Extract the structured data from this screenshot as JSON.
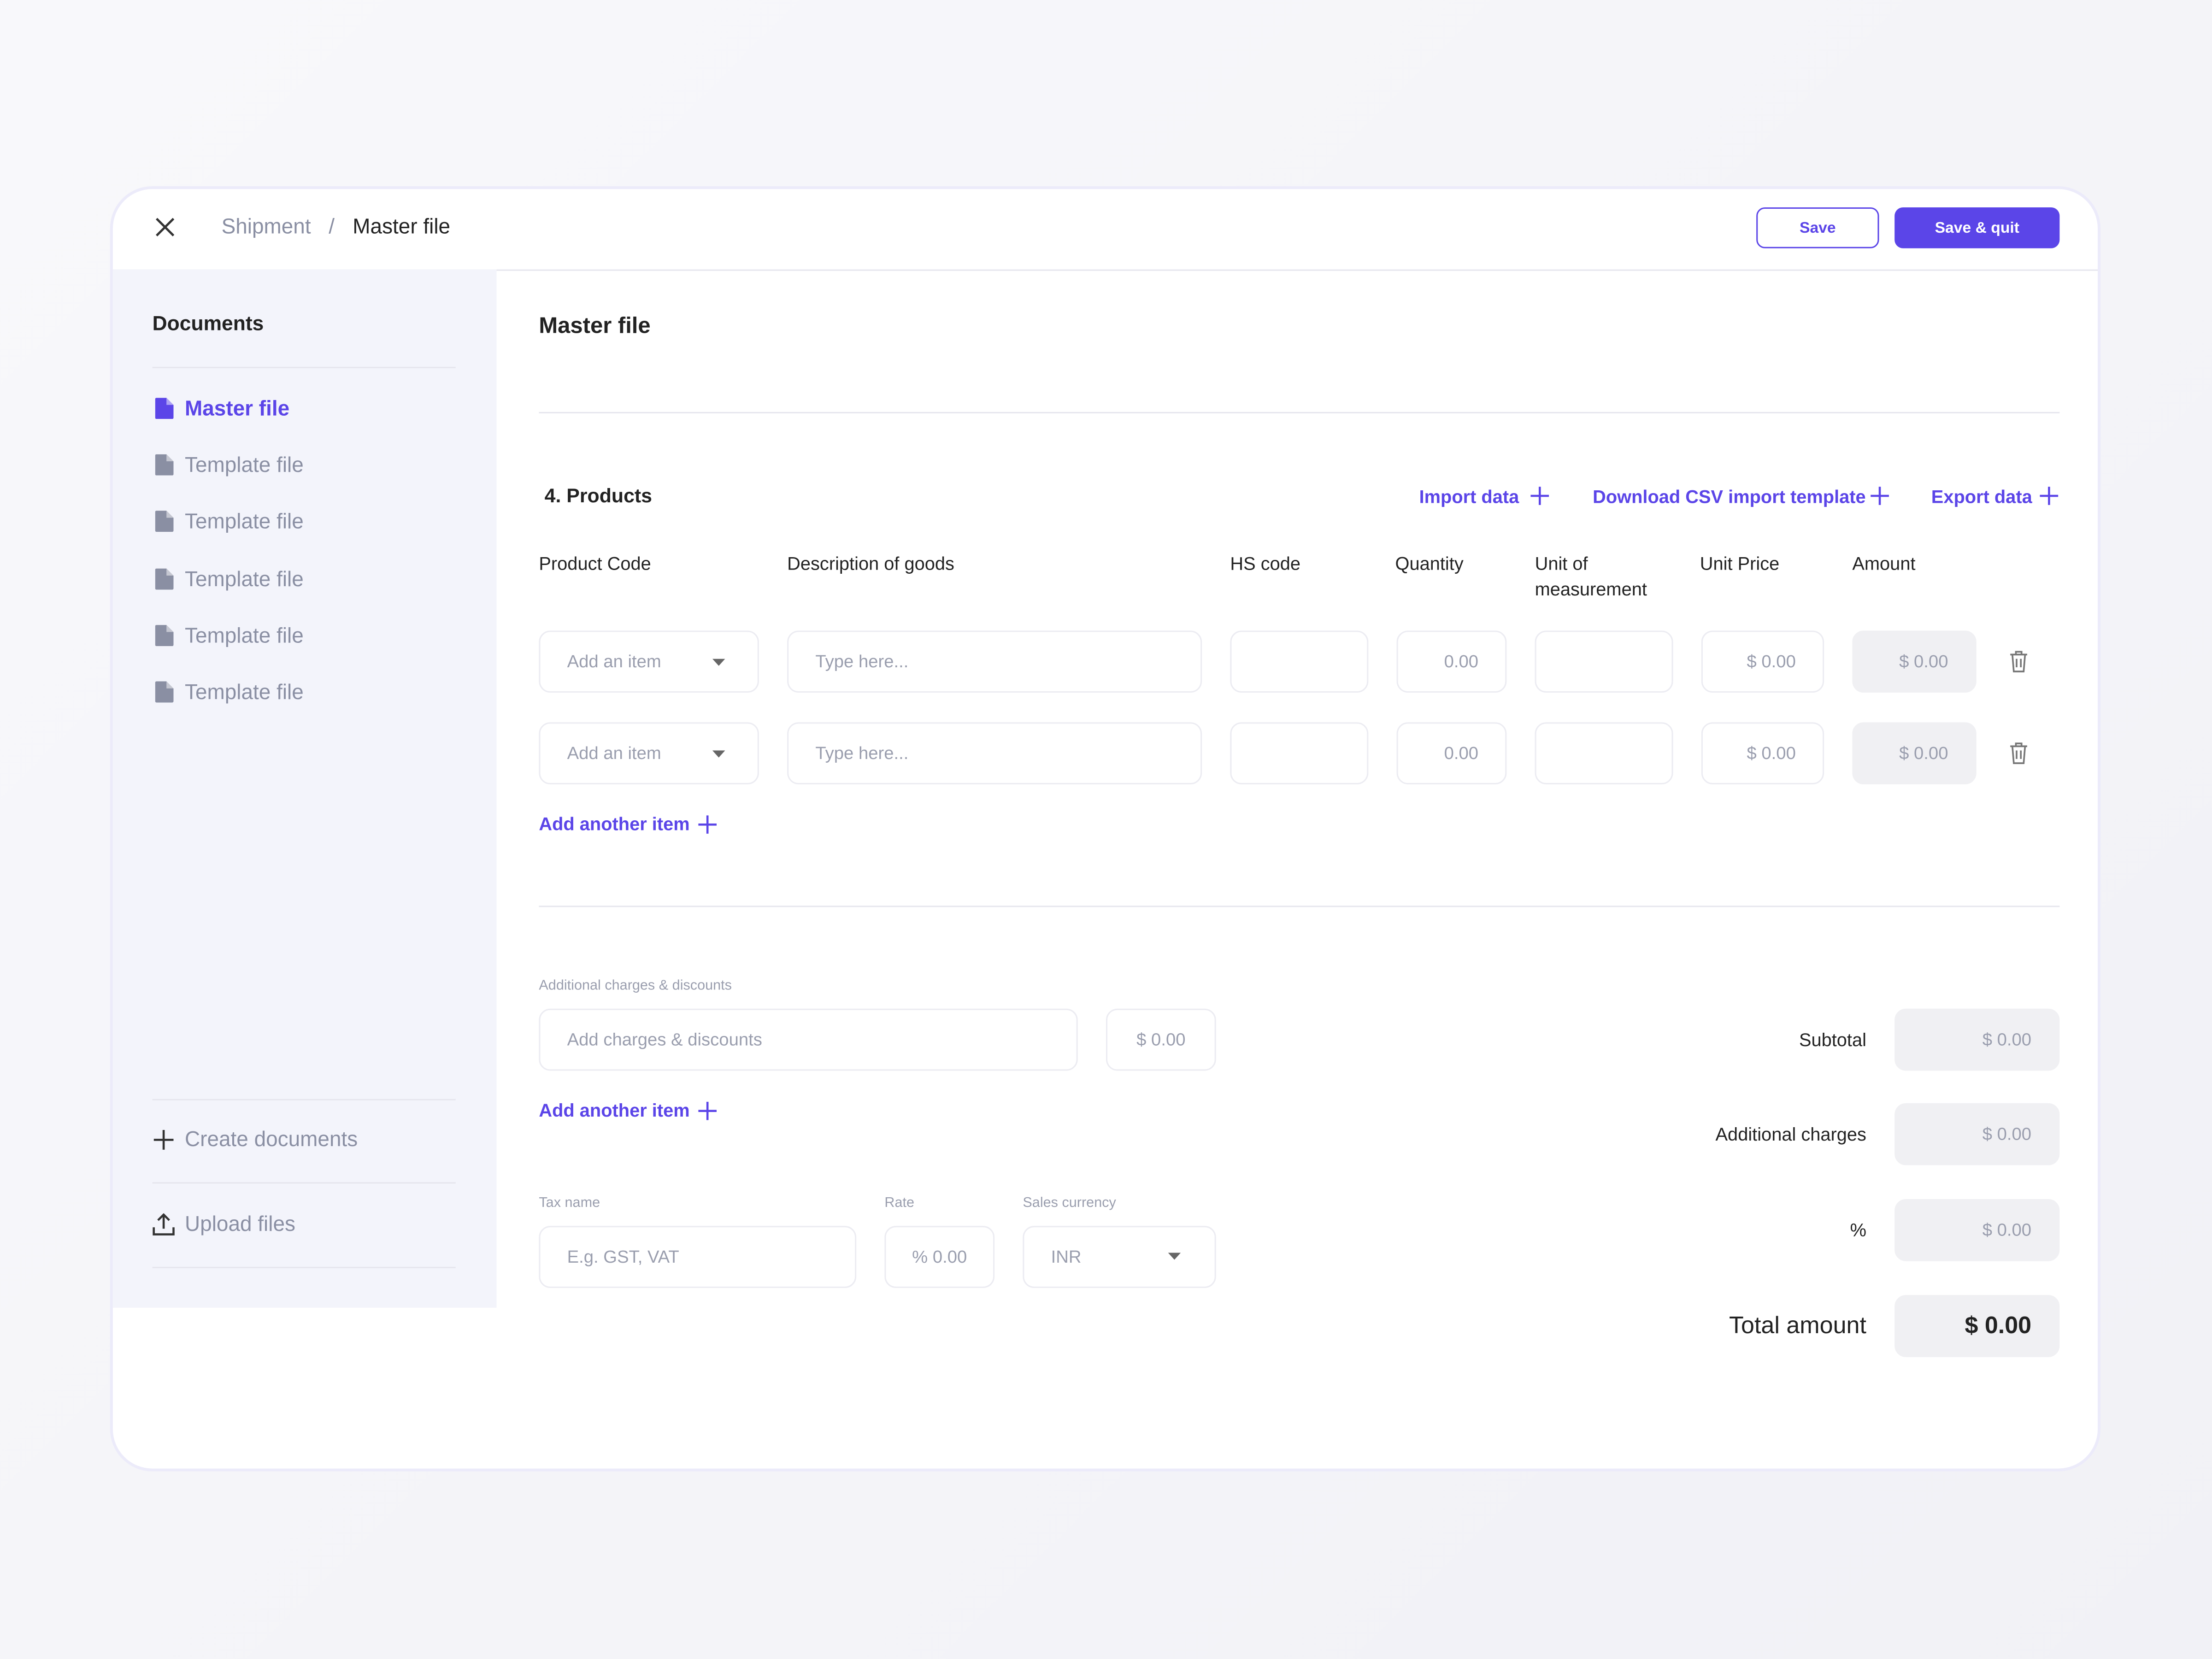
{
  "header": {
    "breadcrumb": [
      "Shipment",
      "Master file"
    ],
    "buttons": [
      "Save",
      "Save & quit"
    ]
  },
  "sidebar": {
    "title": "Documents",
    "items": [
      "Master file",
      "Template file",
      "Template file",
      "Template file",
      "Template file",
      "Template file"
    ],
    "actions": [
      "Create documents",
      "Upload files"
    ]
  },
  "main": {
    "title": "Master file",
    "section": "4. Products",
    "links": [
      "Import data",
      "Download CSV import template",
      "Export data"
    ],
    "columns": [
      "Product Code",
      "Description of goods",
      "HS code",
      "Quantity",
      "Unit of measurement",
      "Unit Price",
      "Amount"
    ],
    "rows": [
      {
        "product": "Add an item",
        "description": "Type here...",
        "quantity": "0.00",
        "unit_price": "$ 0.00",
        "amount": "$ 0.00"
      },
      {
        "product": "Add an item",
        "description": "Type here...",
        "quantity": "0.00",
        "unit_price": "$ 0.00",
        "amount": "$ 0.00"
      }
    ],
    "add_item": "Add another item",
    "charges": {
      "label": "Additional charges & discounts",
      "placeholder": "Add charges & discounts",
      "amount": "$ 0.00",
      "add_item": "Add another item"
    },
    "tax": [
      {
        "label": "Tax name",
        "placeholder": "E.g. GST, VAT"
      },
      {
        "label": "Rate",
        "placeholder": "% 0.00"
      },
      {
        "label": "Sales currency",
        "value": "INR"
      }
    ],
    "totals": [
      {
        "label": "Subtotal",
        "value": "$ 0.00"
      },
      {
        "label": "Additional charges",
        "value": "$ 0.00"
      },
      {
        "label": "%",
        "value": "$ 0.00"
      },
      {
        "label": "Total amount",
        "value": "$ 0.00"
      }
    ]
  }
}
